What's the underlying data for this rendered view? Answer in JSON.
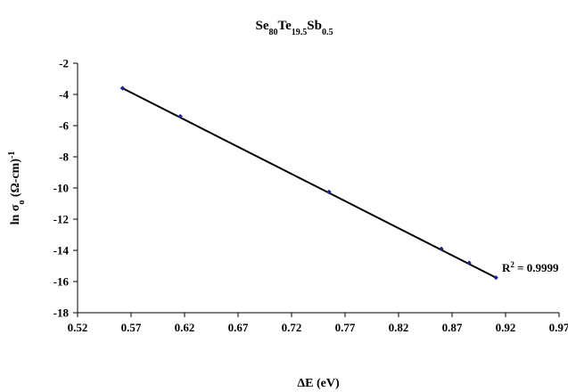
{
  "chart_data": {
    "type": "scatter",
    "title": {
      "base1": "Se",
      "sub1": "80",
      "base2": "Te",
      "sub2": "19.5",
      "base3": "Sb",
      "sub3": "0.5"
    },
    "xlabel": "ΔE (eV)",
    "ylabel": {
      "pre": "ln σ",
      "sub": "o",
      "mid": " (Ω-cm)",
      "sup": "-1"
    },
    "xlim": [
      0.52,
      0.97
    ],
    "ylim": [
      -18,
      -2
    ],
    "x_ticks": [
      "0.52",
      "0.57",
      "0.62",
      "0.67",
      "0.72",
      "0.77",
      "0.82",
      "0.87",
      "0.92",
      "0.97"
    ],
    "y_ticks": [
      "-2",
      "-4",
      "-6",
      "-8",
      "-10",
      "-12",
      "-14",
      "-16",
      "-18"
    ],
    "grid": false,
    "marker_color": "#1f1f8f",
    "trendline_color": "#000000",
    "series": [
      {
        "x": [
          0.562,
          0.616,
          0.755,
          0.86,
          0.886,
          0.911
        ],
        "y": [
          -3.6,
          -5.4,
          -10.25,
          -13.9,
          -14.8,
          -15.75
        ]
      }
    ],
    "trendline": {
      "x": [
        0.562,
        0.911
      ],
      "y": [
        -3.6,
        -15.75
      ]
    },
    "r_squared": {
      "base": "R",
      "sup": "2",
      "rest": " = 0.9999"
    }
  }
}
